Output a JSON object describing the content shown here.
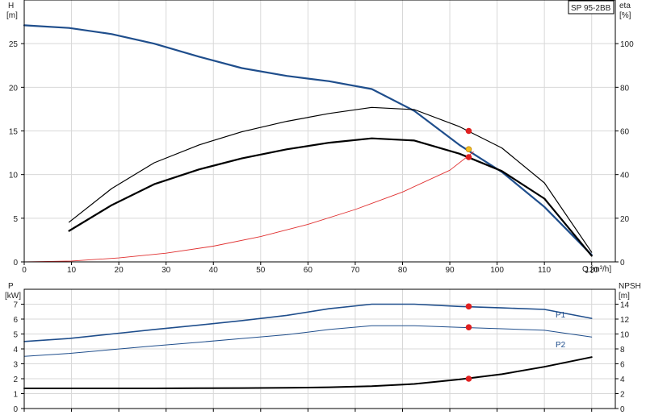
{
  "product_label": "SP 95-2BB",
  "chart_data": [
    {
      "type": "line",
      "x_axis": {
        "label": "Q [m³/h]",
        "range": [
          0,
          125
        ],
        "ticks": [
          0,
          10,
          20,
          30,
          40,
          50,
          60,
          70,
          80,
          90,
          100,
          110,
          120
        ]
      },
      "y_left": {
        "label_top": "H",
        "label_unit": "[m]",
        "range": [
          0,
          30
        ],
        "ticks": [
          0,
          5,
          10,
          15,
          20,
          25
        ]
      },
      "y_right": {
        "label_top": "eta",
        "label_unit": "[%]",
        "range": [
          0,
          120
        ],
        "ticks": [
          0,
          20,
          40,
          60,
          80,
          100
        ]
      },
      "grid": true,
      "series": [
        {
          "id": "H",
          "axis": "left",
          "color": "#1f4e8c",
          "width": 2.2,
          "x": [
            0,
            9.5,
            18.5,
            27.5,
            37,
            46,
            55.5,
            64.5,
            73.5,
            82.5,
            92,
            101,
            110,
            120
          ],
          "y": [
            27.1,
            26.8,
            26.1,
            25.0,
            23.5,
            22.2,
            21.3,
            20.7,
            19.8,
            17.3,
            13.4,
            10.3,
            6.3,
            0.8
          ]
        },
        {
          "id": "eta-upper",
          "axis": "right",
          "color": "#000000",
          "width": 1.2,
          "x": [
            9.5,
            18.5,
            27.5,
            37,
            46,
            55.5,
            64.5,
            73.5,
            82.5,
            92,
            101,
            110,
            120
          ],
          "y": [
            18.2,
            33.6,
            45.4,
            53.6,
            59.6,
            64.4,
            68.0,
            70.8,
            69.8,
            62.0,
            52.2,
            36.2,
            4.4
          ]
        },
        {
          "id": "eta-lower",
          "axis": "right",
          "color": "#000000",
          "width": 2.2,
          "x": [
            9.5,
            18.5,
            27.5,
            37,
            46,
            55.5,
            64.5,
            73.5,
            82.5,
            92,
            101,
            110,
            120
          ],
          "y": [
            14.2,
            26.0,
            35.6,
            42.4,
            47.4,
            51.6,
            54.6,
            56.6,
            55.6,
            49.6,
            41.6,
            29.0,
            2.8
          ]
        },
        {
          "id": "system",
          "axis": "left",
          "color": "#e03030",
          "width": 0.9,
          "x": [
            0,
            10,
            20,
            30,
            40,
            50,
            60,
            70,
            80,
            90,
            95
          ],
          "y": [
            0,
            0.1,
            0.45,
            1.0,
            1.8,
            2.9,
            4.3,
            6.0,
            8.0,
            10.5,
            12.6
          ]
        }
      ],
      "markers": [
        {
          "x": 94,
          "y": 15.0,
          "axis": "left",
          "color": "#e02020"
        },
        {
          "x": 94,
          "y": 12.0,
          "axis": "left",
          "color": "#e02020"
        },
        {
          "x": 94,
          "y": 12.9,
          "axis": "left",
          "color": "#f0c020"
        }
      ]
    },
    {
      "type": "line",
      "y_left": {
        "label_top": "P",
        "label_unit": "[kW]",
        "range": [
          0,
          8
        ],
        "ticks": [
          0,
          1,
          2,
          3,
          4,
          5,
          6,
          7
        ]
      },
      "y_right": {
        "label_top": "NPSH",
        "label_unit": "[m]",
        "range": [
          0,
          16
        ],
        "ticks": [
          0,
          2,
          4,
          6,
          8,
          10,
          12,
          14
        ]
      },
      "grid": true,
      "series": [
        {
          "id": "P1",
          "name": "P1",
          "axis": "left",
          "color": "#1f4e8c",
          "width": 1.6,
          "x": [
            0,
            9.5,
            18.5,
            27.5,
            37,
            46,
            55.5,
            64.5,
            73.5,
            82.5,
            92,
            101,
            110,
            120
          ],
          "y": [
            4.5,
            4.7,
            5.0,
            5.3,
            5.6,
            5.9,
            6.25,
            6.7,
            7.0,
            7.0,
            6.85,
            6.75,
            6.65,
            6.05
          ]
        },
        {
          "id": "P2",
          "name": "P2",
          "axis": "left",
          "color": "#1f4e8c",
          "width": 1.0,
          "x": [
            0,
            9.5,
            18.5,
            27.5,
            37,
            46,
            55.5,
            64.5,
            73.5,
            82.5,
            92,
            101,
            110,
            120
          ],
          "y": [
            3.5,
            3.7,
            3.95,
            4.2,
            4.45,
            4.7,
            4.95,
            5.3,
            5.55,
            5.55,
            5.45,
            5.35,
            5.25,
            4.8
          ]
        },
        {
          "id": "NPSH",
          "axis": "right",
          "color": "#000000",
          "width": 2.0,
          "x": [
            0,
            9.5,
            18.5,
            27.5,
            37,
            46,
            55.5,
            64.5,
            73.5,
            82.5,
            92,
            101,
            110,
            120
          ],
          "y": [
            2.7,
            2.7,
            2.7,
            2.7,
            2.72,
            2.75,
            2.78,
            2.85,
            3.0,
            3.3,
            3.9,
            4.6,
            5.6,
            6.9
          ]
        }
      ],
      "markers": [
        {
          "x": 94,
          "y": 6.85,
          "axis": "left",
          "color": "#e02020"
        },
        {
          "x": 94,
          "y": 5.45,
          "axis": "left",
          "color": "#e02020"
        },
        {
          "x": 94,
          "y": 4.0,
          "axis": "right",
          "color": "#e02020"
        }
      ]
    }
  ]
}
